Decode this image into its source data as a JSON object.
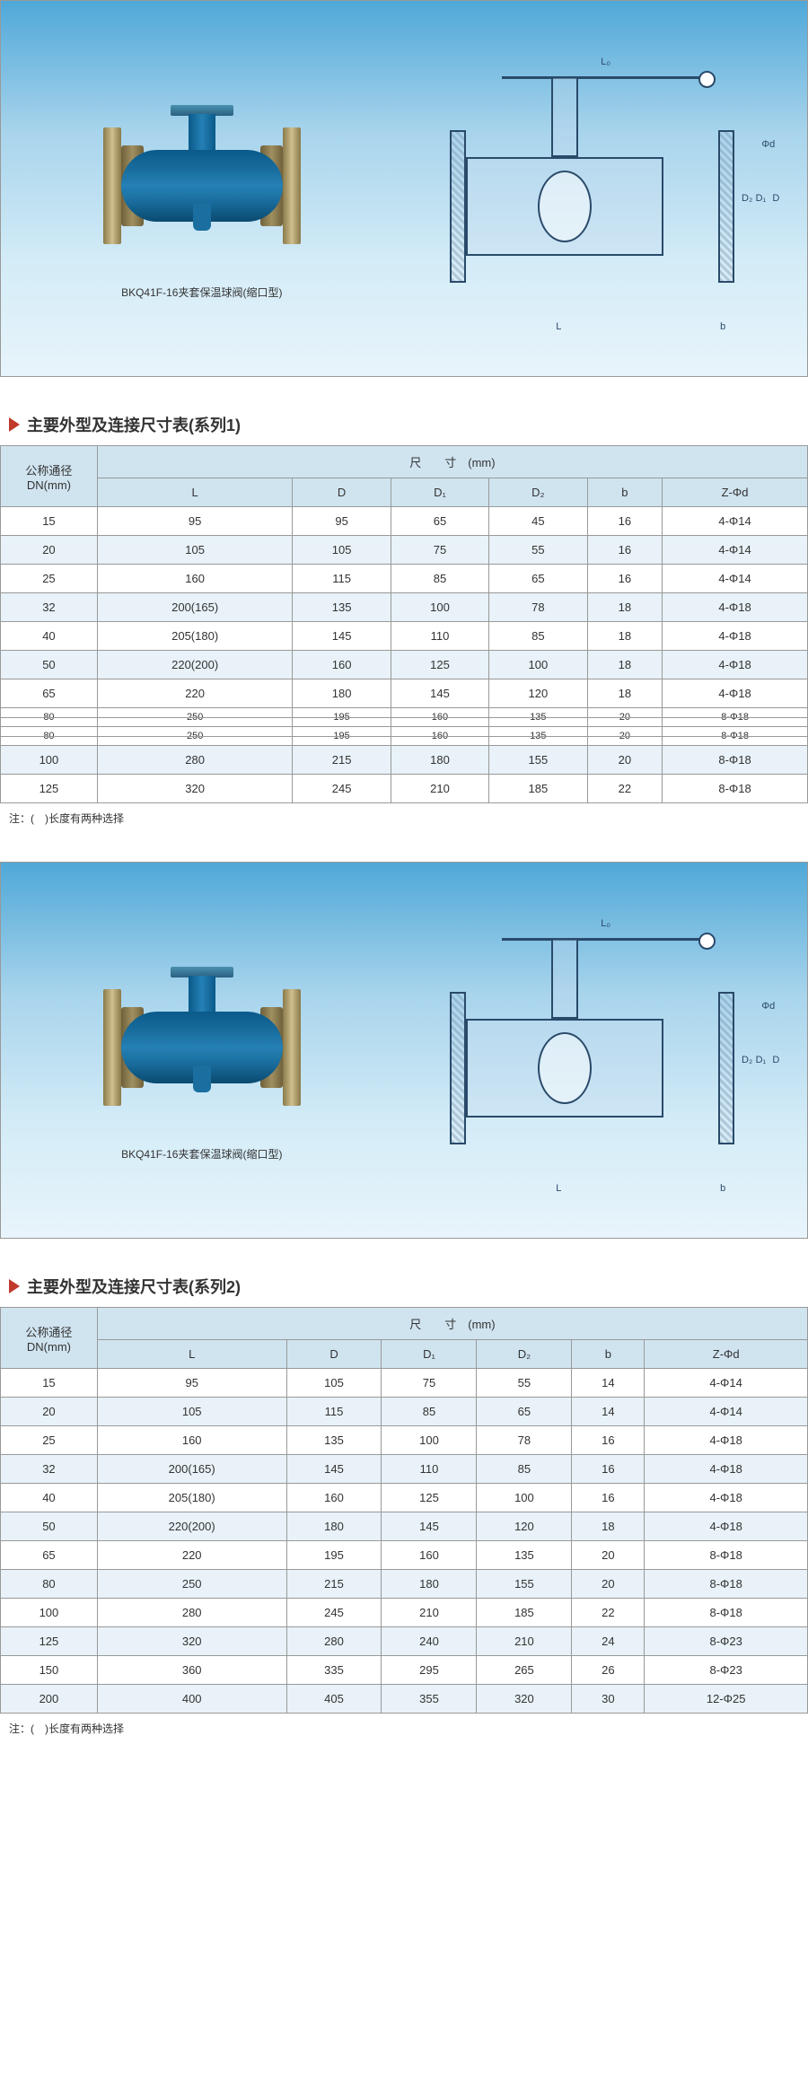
{
  "diagrams": {
    "caption1": "BKQ41F-16夹套保温球阀(缩口型)",
    "caption2": "BKQ41F-16夹套保温球阀(缩口型)",
    "dims": {
      "L0": "L₀",
      "L": "L",
      "D": "D",
      "D1": "D₁",
      "D2": "D₂",
      "b": "b",
      "phid": "Φd"
    }
  },
  "tables": {
    "series1": {
      "title": "主要外型及连接尺寸表(系列1)",
      "col_dn_label": "公称通径\nDN(mm)",
      "header_span": "尺　　寸　(mm)",
      "columns": [
        "L",
        "D",
        "D₁",
        "D₂",
        "b",
        "Z-Φd"
      ],
      "rows": [
        [
          "15",
          "95",
          "95",
          "65",
          "45",
          "16",
          "4-Φ14"
        ],
        [
          "20",
          "105",
          "105",
          "75",
          "55",
          "16",
          "4-Φ14"
        ],
        [
          "25",
          "160",
          "115",
          "85",
          "65",
          "16",
          "4-Φ14"
        ],
        [
          "32",
          "200(165)",
          "135",
          "100",
          "78",
          "18",
          "4-Φ18"
        ],
        [
          "40",
          "205(180)",
          "145",
          "110",
          "85",
          "18",
          "4-Φ18"
        ],
        [
          "50",
          "220(200)",
          "160",
          "125",
          "100",
          "18",
          "4-Φ18"
        ],
        [
          "65",
          "220",
          "180",
          "145",
          "120",
          "18",
          "4-Φ18"
        ]
      ],
      "glitch_rows": [
        [
          "80",
          "250",
          "195",
          "160",
          "135",
          "20",
          "8-Φ18"
        ],
        [
          "80",
          "250",
          "195",
          "160",
          "135",
          "20",
          "8-Φ18"
        ]
      ],
      "rows_after": [
        [
          "100",
          "280",
          "215",
          "180",
          "155",
          "20",
          "8-Φ18"
        ],
        [
          "125",
          "320",
          "245",
          "210",
          "185",
          "22",
          "8-Φ18"
        ]
      ],
      "footnote": "注：(　)长度有两种选择"
    },
    "series2": {
      "title": "主要外型及连接尺寸表(系列2)",
      "col_dn_label": "公称通径\nDN(mm)",
      "header_span": "尺　　寸　(mm)",
      "columns": [
        "L",
        "D",
        "D₁",
        "D₂",
        "b",
        "Z-Φd"
      ],
      "rows": [
        [
          "15",
          "95",
          "105",
          "75",
          "55",
          "14",
          "4-Φ14"
        ],
        [
          "20",
          "105",
          "115",
          "85",
          "65",
          "14",
          "4-Φ14"
        ],
        [
          "25",
          "160",
          "135",
          "100",
          "78",
          "16",
          "4-Φ18"
        ],
        [
          "32",
          "200(165)",
          "145",
          "110",
          "85",
          "16",
          "4-Φ18"
        ],
        [
          "40",
          "205(180)",
          "160",
          "125",
          "100",
          "16",
          "4-Φ18"
        ],
        [
          "50",
          "220(200)",
          "180",
          "145",
          "120",
          "18",
          "4-Φ18"
        ],
        [
          "65",
          "220",
          "195",
          "160",
          "135",
          "20",
          "8-Φ18"
        ],
        [
          "80",
          "250",
          "215",
          "180",
          "155",
          "20",
          "8-Φ18"
        ],
        [
          "100",
          "280",
          "245",
          "210",
          "185",
          "22",
          "8-Φ18"
        ],
        [
          "125",
          "320",
          "280",
          "240",
          "210",
          "24",
          "8-Φ23"
        ],
        [
          "150",
          "360",
          "335",
          "295",
          "265",
          "26",
          "8-Φ23"
        ],
        [
          "200",
          "400",
          "405",
          "355",
          "320",
          "30",
          "12-Φ25"
        ]
      ],
      "footnote": "注：(　)长度有两种选择"
    }
  },
  "colors": {
    "panel_grad_top": "#4fa8d8",
    "panel_grad_bot": "#e8f4fb",
    "marker": "#c0392b",
    "th_bg": "#d0e4f0",
    "row_alt": "#e8f2f8",
    "border": "#999999",
    "drawing_line": "#2a4a6a"
  }
}
